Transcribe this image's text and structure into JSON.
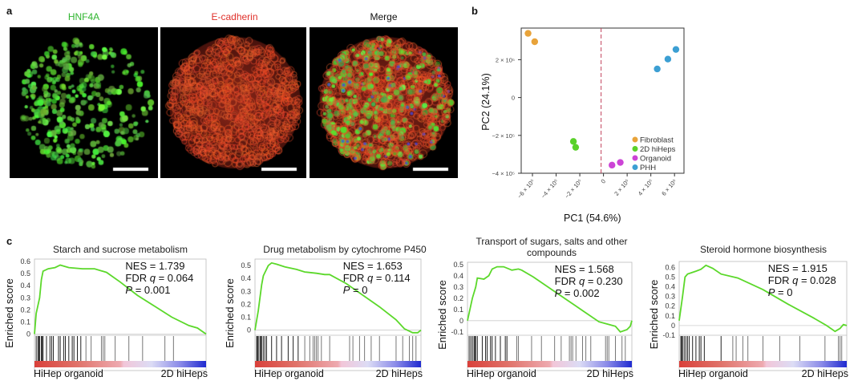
{
  "panel_a": {
    "label": "a",
    "images": [
      {
        "title": "HNF4A",
        "title_color": "#2fb52f"
      },
      {
        "title": "E-cadherin",
        "title_color": "#e0302a"
      },
      {
        "title": "Merge",
        "title_color": "#111111"
      }
    ]
  },
  "chart_data": [
    {
      "panel": "b",
      "type": "scatter",
      "xlabel": "PC1 (54.6%)",
      "ylabel": "PC2 (24.1%)",
      "xlim": [
        -695000,
        680000
      ],
      "ylim": [
        -400000,
        367000
      ],
      "xticks": [
        {
          "v": -600000,
          "label": "−6 × 10⁵"
        },
        {
          "v": -400000,
          "label": "−4 × 10⁵"
        },
        {
          "v": -200000,
          "label": "−2 × 10⁵"
        },
        {
          "v": 0,
          "label": "0"
        },
        {
          "v": 200000,
          "label": "2 × 10⁵"
        },
        {
          "v": 400000,
          "label": "4 × 10⁵"
        },
        {
          "v": 600000,
          "label": "6 × 10⁵"
        }
      ],
      "yticks": [
        {
          "v": 200000,
          "label": "2 × 10⁵"
        },
        {
          "v": 0,
          "label": "0"
        },
        {
          "v": -200000,
          "label": "−2 × 10⁵"
        },
        {
          "v": -400000,
          "label": "−4 × 10⁵"
        }
      ],
      "vline_x": -20000,
      "legend_position": "bottom-right",
      "series": [
        {
          "name": "Fibroblast",
          "color": "#e8a33a",
          "points": [
            [
              -637000,
              339000
            ],
            [
              -581000,
              295000
            ]
          ]
        },
        {
          "name": "2D hiHeps",
          "color": "#5ad12a",
          "points": [
            [
              -254000,
              -232000
            ],
            [
              -235000,
              -263000
            ]
          ]
        },
        {
          "name": "Organoid",
          "color": "#cc44d6",
          "points": [
            [
              72000,
              -357000
            ],
            [
              142000,
              -343000
            ]
          ]
        },
        {
          "name": "PHH",
          "color": "#3c9fd3",
          "points": [
            [
              454000,
              151000
            ],
            [
              544000,
              203000
            ],
            [
              612000,
              254000
            ]
          ]
        }
      ]
    },
    {
      "panel": "c1",
      "type": "line",
      "title": "Starch and sucrose metabolism",
      "ylabel": "Enriched score",
      "ylim": [
        -0.01,
        0.62
      ],
      "yticks": [
        "0.6",
        "0.5",
        "0.4",
        "0.3",
        "0.2",
        "0.1",
        "0"
      ],
      "ytick_values": [
        0.6,
        0.5,
        0.4,
        0.3,
        0.2,
        0.1,
        0
      ],
      "stats": {
        "nes": "NES = 1.739",
        "fdr_prefix": "FDR ",
        "fdr_q": "q",
        "fdr_value": " = 0.064",
        "p_label": "P",
        "p_value": " = 0.001"
      },
      "left_label": "HiHep organoid",
      "right_label": "2D hiHeps",
      "x": [
        0,
        0.01,
        0.03,
        0.04,
        0.05,
        0.08,
        0.12,
        0.15,
        0.2,
        0.28,
        0.35,
        0.42,
        0.5,
        0.6,
        0.7,
        0.8,
        0.9,
        0.95,
        1
      ],
      "y": [
        0,
        0.17,
        0.3,
        0.45,
        0.52,
        0.54,
        0.55,
        0.57,
        0.55,
        0.54,
        0.54,
        0.51,
        0.43,
        0.32,
        0.23,
        0.14,
        0.07,
        0.05,
        0
      ],
      "hits": [
        0.01,
        0.02,
        0.025,
        0.03,
        0.04,
        0.045,
        0.05,
        0.07,
        0.09,
        0.1,
        0.11,
        0.14,
        0.15,
        0.17,
        0.18,
        0.2,
        0.22,
        0.23,
        0.25,
        0.27,
        0.3,
        0.33,
        0.39,
        0.4,
        0.41,
        0.47,
        0.55,
        0.63,
        0.76,
        0.81
      ]
    },
    {
      "panel": "c2",
      "type": "line",
      "title": "Drug metabolism by cytochrome P450",
      "ylabel": "Enriched score",
      "ylim": [
        -0.04,
        0.55
      ],
      "yticks": [
        "0.5",
        "0.4",
        "0.3",
        "0.2",
        "0.1",
        "0"
      ],
      "ytick_values": [
        0.5,
        0.4,
        0.3,
        0.2,
        0.1,
        0
      ],
      "stats": {
        "nes": "NES = 1.653",
        "fdr_prefix": "FDR ",
        "fdr_q": "q",
        "fdr_value": " = 0.114",
        "p_label": "P",
        "p_value": " = 0"
      },
      "left_label": "HiHep organoid",
      "right_label": "2D hiHeps",
      "x": [
        0,
        0.02,
        0.04,
        0.05,
        0.08,
        0.1,
        0.13,
        0.18,
        0.25,
        0.3,
        0.37,
        0.42,
        0.45,
        0.55,
        0.65,
        0.75,
        0.85,
        0.9,
        0.95,
        0.98,
        1
      ],
      "y": [
        0,
        0.15,
        0.35,
        0.42,
        0.5,
        0.52,
        0.51,
        0.49,
        0.47,
        0.45,
        0.44,
        0.43,
        0.43,
        0.36,
        0.27,
        0.18,
        0.08,
        0.01,
        -0.02,
        -0.02,
        0
      ],
      "hits": [
        0.01,
        0.015,
        0.02,
        0.03,
        0.035,
        0.04,
        0.05,
        0.06,
        0.07,
        0.1,
        0.13,
        0.16,
        0.2,
        0.23,
        0.26,
        0.3,
        0.33,
        0.35,
        0.36,
        0.37,
        0.38,
        0.4,
        0.45,
        0.57,
        0.59,
        0.63,
        0.66,
        0.7,
        0.75,
        0.85,
        0.89,
        0.93,
        0.95,
        0.97
      ]
    },
    {
      "panel": "c3",
      "type": "line",
      "title": "Transport of sugars, salts and other compounds",
      "ylabel": "Enriched score",
      "ylim": [
        -0.13,
        0.52
      ],
      "yticks": [
        "0.5",
        "0.4",
        "0.3",
        "0.2",
        "0.1",
        "0",
        "-0.1"
      ],
      "ytick_values": [
        0.5,
        0.4,
        0.3,
        0.2,
        0.1,
        0,
        -0.1
      ],
      "stats": {
        "nes": "NES = 1.568",
        "fdr_prefix": "FDR ",
        "fdr_q": "q",
        "fdr_value": " = 0.230",
        "p_label": "P",
        "p_value": " = 0.002"
      },
      "left_label": "HiHep organoid",
      "right_label": "2D hiHeps",
      "x": [
        0,
        0.03,
        0.05,
        0.06,
        0.1,
        0.13,
        0.15,
        0.18,
        0.22,
        0.27,
        0.31,
        0.33,
        0.4,
        0.5,
        0.6,
        0.7,
        0.8,
        0.85,
        0.9,
        0.93,
        0.97,
        0.99,
        1
      ],
      "y": [
        0,
        0.2,
        0.3,
        0.38,
        0.37,
        0.4,
        0.46,
        0.48,
        0.48,
        0.45,
        0.46,
        0.45,
        0.39,
        0.29,
        0.19,
        0.09,
        -0.01,
        -0.03,
        -0.05,
        -0.1,
        -0.08,
        -0.05,
        0
      ],
      "hits": [
        0.01,
        0.02,
        0.03,
        0.04,
        0.045,
        0.05,
        0.06,
        0.09,
        0.11,
        0.12,
        0.14,
        0.15,
        0.17,
        0.2,
        0.23,
        0.24,
        0.3,
        0.31,
        0.39,
        0.45,
        0.53,
        0.57,
        0.62,
        0.63,
        0.64,
        0.66,
        0.7,
        0.72,
        0.75,
        0.84,
        0.85,
        0.86,
        0.9,
        0.94,
        0.96
      ]
    },
    {
      "panel": "c4",
      "type": "line",
      "title": "Steroid hormone biosynthesis",
      "ylabel": "Enriched score",
      "ylim": [
        -0.1,
        0.66
      ],
      "yticks": [
        "0.6",
        "0.5",
        "0.4",
        "0.3",
        "0.2",
        "0.1",
        "0",
        "-0.1"
      ],
      "ytick_values": [
        0.6,
        0.5,
        0.4,
        0.3,
        0.2,
        0.1,
        0,
        -0.1
      ],
      "stats": {
        "nes": "NES = 1.915",
        "fdr_prefix": "FDR ",
        "fdr_q": "q",
        "fdr_value": " = 0.028",
        "p_label": "P",
        "p_value": " = 0"
      },
      "left_label": "HiHep organoid",
      "right_label": "2D hiHeps",
      "x": [
        0,
        0.02,
        0.035,
        0.05,
        0.1,
        0.13,
        0.16,
        0.2,
        0.25,
        0.35,
        0.5,
        0.65,
        0.8,
        0.88,
        0.93,
        0.96,
        0.98,
        1
      ],
      "y": [
        0.05,
        0.3,
        0.5,
        0.53,
        0.56,
        0.58,
        0.62,
        0.59,
        0.53,
        0.49,
        0.37,
        0.22,
        0.08,
        0.0,
        -0.06,
        -0.03,
        0.01,
        0
      ],
      "hits": [
        0.01,
        0.015,
        0.02,
        0.03,
        0.04,
        0.05,
        0.06,
        0.08,
        0.1,
        0.12,
        0.13,
        0.15,
        0.25,
        0.32,
        0.34,
        0.38,
        0.41,
        0.5,
        0.6,
        0.72,
        0.87,
        0.95,
        0.96,
        0.97
      ]
    }
  ]
}
